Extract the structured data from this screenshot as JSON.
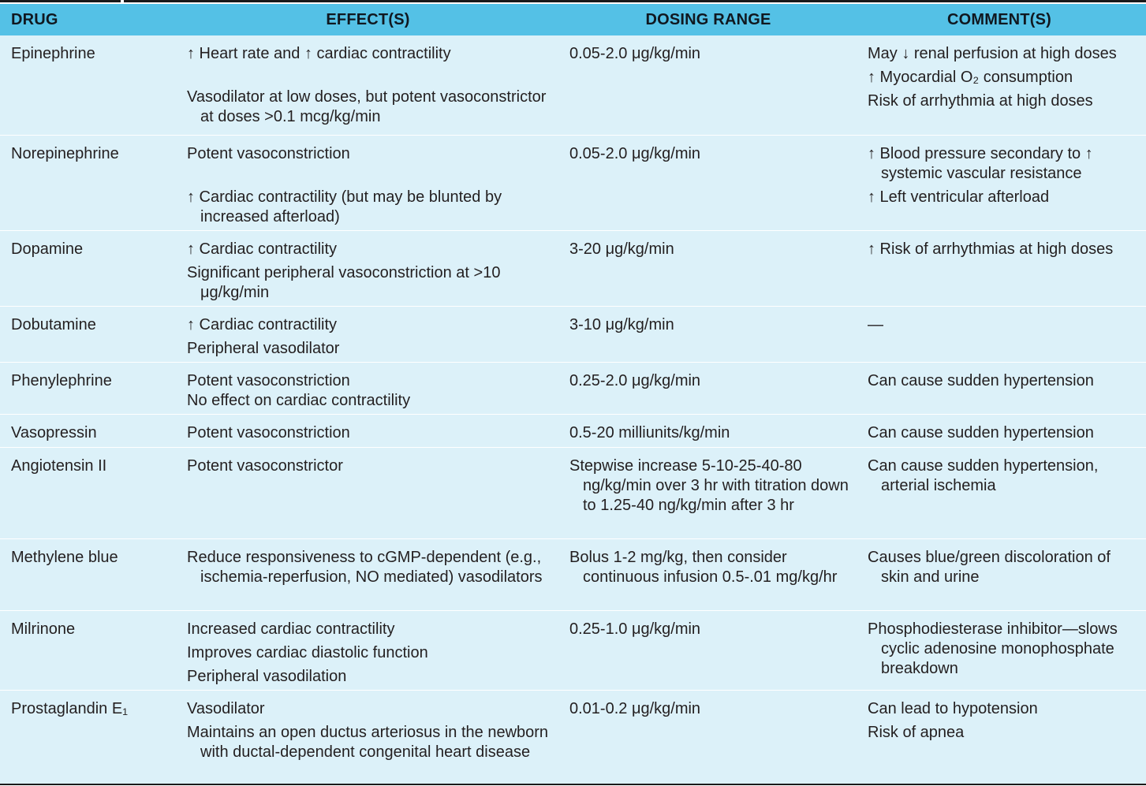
{
  "columns": [
    "DRUG",
    "EFFECT(S)",
    "DOSING RANGE",
    "COMMENT(S)"
  ],
  "rows": [
    {
      "drug": "Epinephrine",
      "effects": [
        "↑ Heart rate and ↑ cardiac contractility",
        "Vasodilator at low doses, but potent vasoconstrictor at doses >0.1 mcg/kg/min"
      ],
      "dosing": "0.05-2.0 μg/kg/min",
      "comments": [
        "May ↓ renal perfusion at high doses",
        "↑ Myocardial O₂ consumption",
        "Risk of arrhythmia at high doses"
      ]
    },
    {
      "drug": "Norepinephrine",
      "effects": [
        "Potent vasoconstriction",
        "↑ Cardiac contractility (but may be blunted by increased afterload)"
      ],
      "dosing": "0.05-2.0 μg/kg/min",
      "comments": [
        "↑ Blood pressure secondary to ↑ systemic vascular resistance",
        "↑ Left ventricular afterload"
      ]
    },
    {
      "drug": "Dopamine",
      "effects": [
        "↑ Cardiac contractility",
        "Significant peripheral vasoconstriction at >10 μg/kg/min"
      ],
      "dosing": "3-20 μg/kg/min",
      "comments": [
        "↑ Risk of arrhythmias at high doses"
      ]
    },
    {
      "drug": "Dobutamine",
      "effects": [
        "↑ Cardiac contractility",
        "Peripheral vasodilator"
      ],
      "dosing": "3-10 μg/kg/min",
      "comments": [
        "—"
      ]
    },
    {
      "drug": "Phenylephrine",
      "effects": [
        "Potent vasoconstriction",
        "No effect on cardiac contractility"
      ],
      "dosing": "0.25-2.0 μg/kg/min",
      "comments": [
        "Can cause sudden hypertension"
      ]
    },
    {
      "drug": "Vasopressin",
      "effects": [
        "Potent vasoconstriction"
      ],
      "dosing": "0.5-20 milliunits/kg/min",
      "comments": [
        "Can cause sudden hypertension"
      ]
    },
    {
      "drug": "Angiotensin II",
      "effects": [
        "Potent vasoconstrictor"
      ],
      "dosing": "Stepwise increase 5-10-25-40-80 ng/kg/min over 3 hr with titration down to 1.25-40 ng/kg/min after 3 hr",
      "comments": [
        "Can cause sudden hypertension, arterial ischemia"
      ]
    },
    {
      "drug": "Methylene blue",
      "effects": [
        "Reduce responsiveness to cGMP-dependent (e.g., ischemia-reperfusion, NO mediated) vasodilators"
      ],
      "dosing": "Bolus 1-2 mg/kg, then consider continuous infusion 0.5-.01 mg/kg/hr",
      "comments": [
        "Causes blue/green discoloration of skin and urine"
      ]
    },
    {
      "drug": "Milrinone",
      "effects": [
        "Increased cardiac contractility",
        "Improves cardiac diastolic function",
        "Peripheral vasodilation"
      ],
      "dosing": "0.25-1.0 μg/kg/min",
      "comments": [
        "Phosphodiesterase inhibitor—slows cyclic adenosine monophosphate breakdown"
      ]
    },
    {
      "drug": "Prostaglandin E₁",
      "effects": [
        "Vasodilator",
        "Maintains an open ductus arteriosus in the newborn with ductal-dependent congenital heart disease"
      ],
      "dosing": "0.01-0.2 μg/kg/min",
      "comments": [
        "Can lead to hypotension",
        "Risk of apnea"
      ]
    }
  ]
}
